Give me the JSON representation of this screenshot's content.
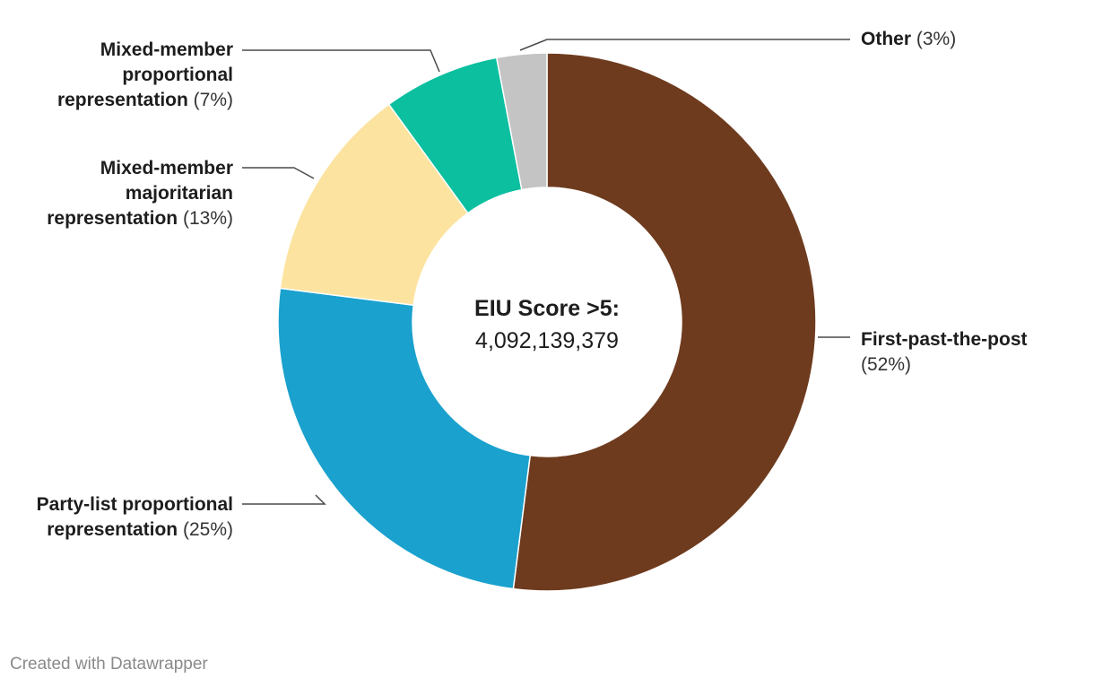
{
  "chart_data": {
    "type": "pie",
    "center_label": {
      "title": "EIU Score >5:",
      "value": "4,092,139,379"
    },
    "slices": [
      {
        "name": "First-past-the-post",
        "percent_label": "(52%)",
        "value": 52,
        "color": "#6e3b1e"
      },
      {
        "name": "Party-list proportional representation",
        "percent_label": "(25%)",
        "value": 25,
        "color": "#1aa1ce"
      },
      {
        "name": "Mixed-member majoritarian representation",
        "percent_label": "(13%)",
        "value": 13,
        "color": "#fde3a0"
      },
      {
        "name": "Mixed-member proportional representation",
        "percent_label": "(7%)",
        "value": 7,
        "color": "#0bbf9f"
      },
      {
        "name": "Other",
        "percent_label": "(3%)",
        "value": 3,
        "color": "#c4c4c4"
      }
    ]
  },
  "footer": "Created with Datawrapper"
}
